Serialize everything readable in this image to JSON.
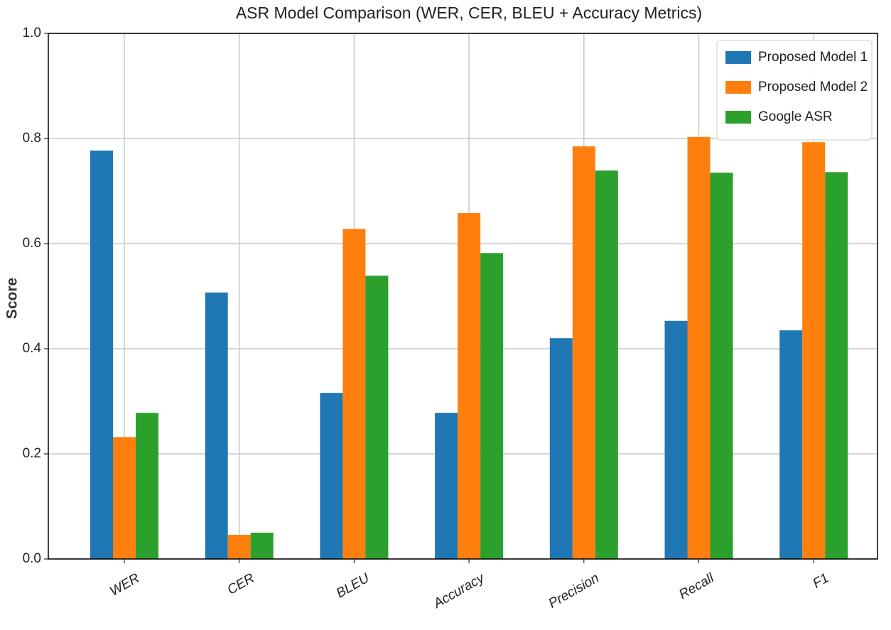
{
  "chart_data": {
    "type": "bar",
    "title": "ASR Model Comparison (WER, CER, BLEU + Accuracy Metrics)",
    "y_label": "Score",
    "categories": [
      "WER",
      "CER",
      "BLEU",
      "Accuracy",
      "Precision",
      "Recall",
      "F1"
    ],
    "series": [
      {
        "name": "Proposed Model 1",
        "color": "#1f77b4",
        "values": [
          0.777,
          0.507,
          0.316,
          0.278,
          0.42,
          0.453,
          0.435
        ]
      },
      {
        "name": "Proposed Model 2",
        "color": "#ff7f0e",
        "values": [
          0.232,
          0.046,
          0.628,
          0.658,
          0.785,
          0.803,
          0.793
        ]
      },
      {
        "name": "Google ASR",
        "color": "#2ca02c",
        "values": [
          0.278,
          0.05,
          0.539,
          0.582,
          0.739,
          0.735,
          0.736
        ]
      }
    ],
    "ylim": [
      0,
      1
    ],
    "yticks": [
      {
        "value": 0,
        "label": "0.0"
      },
      {
        "value": 0.2,
        "label": "0.2"
      },
      {
        "value": 0.4,
        "label": "0.4"
      },
      {
        "value": 0.6,
        "label": "0.6"
      },
      {
        "value": 0.8,
        "label": "0.8"
      },
      {
        "value": 1,
        "label": "1.0"
      }
    ],
    "grid": true,
    "legend": "upper right"
  }
}
